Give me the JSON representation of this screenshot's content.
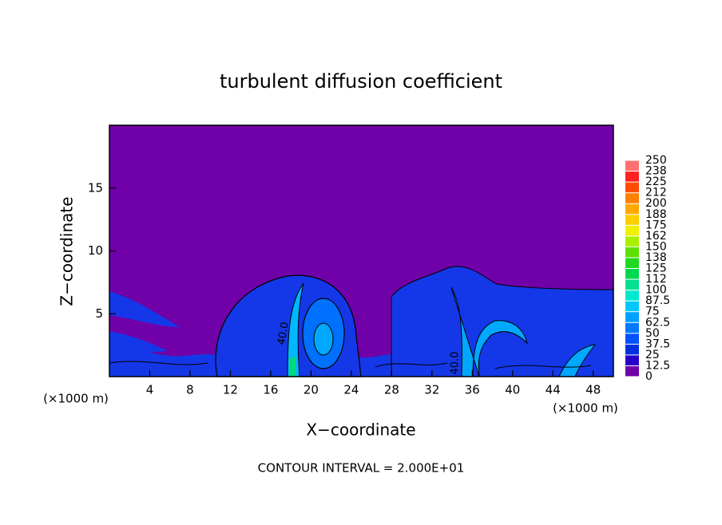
{
  "chart_data": {
    "type": "contour",
    "title": "turbulent diffusion coefficient",
    "x_label": "X−coordinate",
    "y_label": "Z−coordinate",
    "x_unit_label": "(×1000 m)",
    "footer": "CONTOUR INTERVAL = 2.000E+01",
    "contour_labels": [
      "40.0",
      "40.0"
    ],
    "xlim": [
      0,
      50
    ],
    "xticks": [
      4,
      8,
      12,
      16,
      20,
      24,
      28,
      32,
      36,
      40,
      44,
      48
    ],
    "ylim": [
      0,
      20
    ],
    "yticks": [
      5,
      10,
      15
    ],
    "colorbar": {
      "levels": [
        0,
        12.5,
        25,
        37.5,
        50,
        62.5,
        75,
        87.5,
        100,
        {
          "value": 112.5,
          "label": "112"
        },
        125,
        {
          "value": 137.5,
          "label": "138"
        },
        150,
        {
          "value": 162.5,
          "label": "162"
        },
        175,
        {
          "value": 187.5,
          "label": "188"
        },
        200,
        {
          "value": 212.5,
          "label": "212"
        },
        225,
        {
          "value": 237.5,
          "label": "238"
        },
        250
      ],
      "colors": [
        "#7000a8",
        "#2800c8",
        "#0030e0",
        "#0050ff",
        "#0078ff",
        "#00a0ff",
        "#00c8ff",
        "#00e8d0",
        "#00e090",
        "#00d850",
        "#20d820",
        "#60e000",
        "#a8f000",
        "#f0f000",
        "#ffd000",
        "#ffa800",
        "#ff8000",
        "#ff4c00",
        "#ff2020",
        "#ff7070"
      ]
    }
  }
}
